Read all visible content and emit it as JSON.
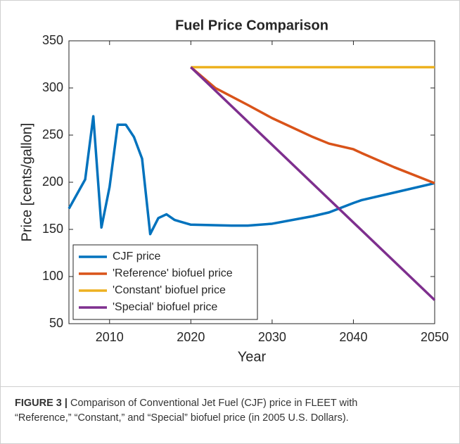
{
  "chart_data": {
    "type": "line",
    "title": "Fuel Price Comparison",
    "x_label": "Year",
    "y_label": "Price [cents/gallon]",
    "xlim": [
      2005,
      2050
    ],
    "xticks": [
      2010,
      2020,
      2030,
      2040,
      2050
    ],
    "ylim": [
      50,
      350
    ],
    "yticks": [
      50,
      100,
      150,
      200,
      250,
      300,
      350
    ],
    "grid": false,
    "legend": "lower left",
    "series": [
      {
        "name": "CJF price",
        "color": "#0072bd",
        "x": [
          2005,
          2007,
          2008,
          2009,
          2010,
          2011,
          2012,
          2013,
          2014,
          2015,
          2016,
          2017,
          2018,
          2020,
          2025,
          2027,
          2030,
          2035,
          2037,
          2040,
          2041,
          2045,
          2050
        ],
        "values": [
          172,
          203,
          270,
          152,
          195,
          261,
          261,
          248,
          225,
          145,
          162,
          166,
          160,
          155,
          154,
          154,
          156,
          164,
          168,
          178,
          181,
          189,
          199
        ]
      },
      {
        "name": "'Reference' biofuel price",
        "color": "#d95319",
        "x": [
          2020,
          2023,
          2027,
          2030,
          2035,
          2037,
          2040,
          2041,
          2045,
          2050
        ],
        "values": [
          322,
          300,
          282,
          268,
          248,
          241,
          235,
          231,
          216,
          199
        ]
      },
      {
        "name": "'Constant' biofuel price",
        "color": "#edb120",
        "x": [
          2020,
          2050
        ],
        "values": [
          322,
          322
        ]
      },
      {
        "name": "'Special' biofuel price",
        "color": "#7e2f8e",
        "x": [
          2020,
          2050
        ],
        "values": [
          322,
          75
        ]
      }
    ]
  },
  "caption": {
    "label": "FIGURE 3 |",
    "text": "Comparison of Conventional Jet Fuel (CJF) price in FLEET with “Reference,” “Constant,” and “Special” biofuel price (in 2005 U.S. Dollars)."
  }
}
